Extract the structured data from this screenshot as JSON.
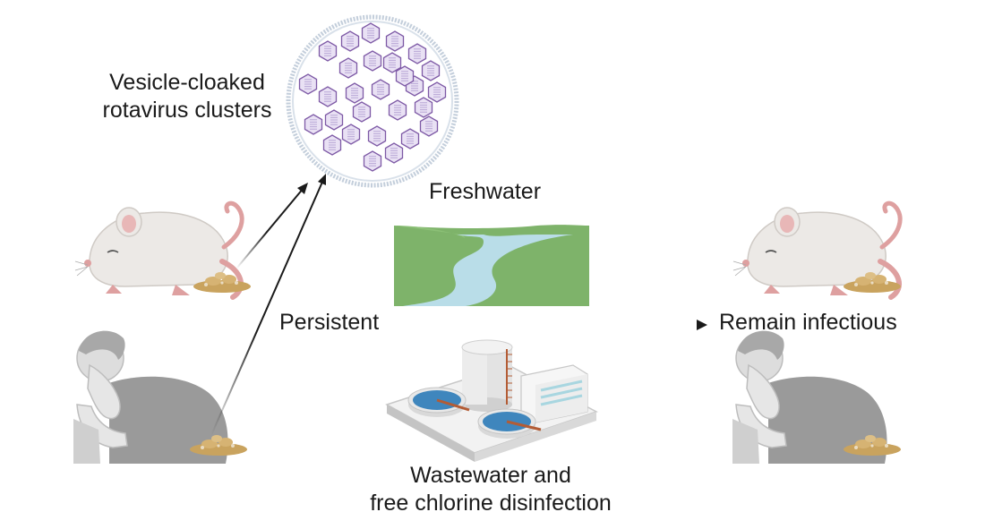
{
  "labels": {
    "vesicle_line1": "Vesicle-cloaked",
    "vesicle_line2": "rotavirus clusters",
    "freshwater": "Freshwater",
    "persistent": "Persistent",
    "remain_infectious": "Remain infectious",
    "wastewater_line1": "Wastewater and",
    "wastewater_line2": "free chlorine disinfection"
  },
  "icons": [
    "vesicle-icon",
    "rotavirus-particle-icon",
    "mouse-icon",
    "feces-icon",
    "sick-person-icon",
    "river-landscape-icon",
    "wastewater-plant-icon",
    "arrow-icon"
  ],
  "colors": {
    "vesicle_membrane": "#c3cedb",
    "virus_outline": "#7e5aa6",
    "virus_fill": "#e9e1f4",
    "hill_green": "#7eb36a",
    "river_blue": "#b9dde8",
    "water_tank_blue": "#3f86bd",
    "arrow": "#1a1a1a",
    "mouse_body": "#ece9e6",
    "mouse_pink": "#dea0a0",
    "feces": "#c9a35e",
    "person_gray": "#9a9a9a"
  }
}
